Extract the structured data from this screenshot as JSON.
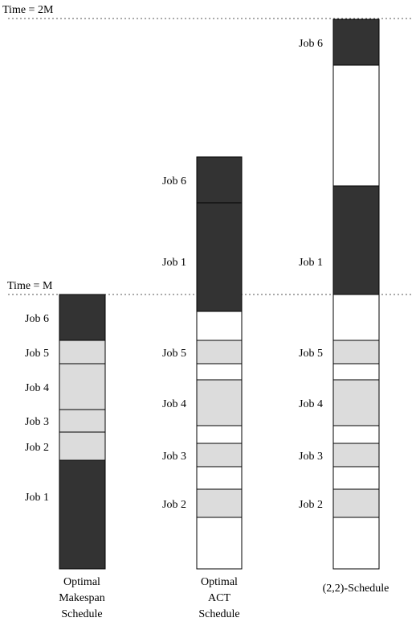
{
  "time_lines": {
    "top_label": "Time = 2M",
    "mid_label": "Time = M"
  },
  "colors": {
    "dark": "#333333",
    "light": "#dcdcdc",
    "white": "#ffffff"
  },
  "columns": [
    {
      "id": "optimal-makespan",
      "caption": [
        "Optimal",
        "Makespan",
        "Schedule"
      ],
      "blocks": [
        {
          "label": "Job 1",
          "shade": "dark"
        },
        {
          "label": "Job 2",
          "shade": "light"
        },
        {
          "label": "Job 3",
          "shade": "light"
        },
        {
          "label": "Job 4",
          "shade": "light"
        },
        {
          "label": "Job 5",
          "shade": "light"
        },
        {
          "label": "Job 6",
          "shade": "dark"
        }
      ]
    },
    {
      "id": "optimal-act",
      "caption": [
        "Optimal",
        "ACT",
        "Schedule"
      ],
      "blocks": [
        {
          "label": "",
          "shade": "white"
        },
        {
          "label": "Job 2",
          "shade": "light"
        },
        {
          "label": "",
          "shade": "white"
        },
        {
          "label": "Job 3",
          "shade": "light"
        },
        {
          "label": "",
          "shade": "white"
        },
        {
          "label": "Job 4",
          "shade": "light"
        },
        {
          "label": "",
          "shade": "white"
        },
        {
          "label": "Job 5",
          "shade": "light"
        },
        {
          "label": "",
          "shade": "white"
        },
        {
          "label": "Job 1",
          "shade": "dark"
        },
        {
          "label": "Job 6",
          "shade": "dark"
        }
      ]
    },
    {
      "id": "two-two-schedule",
      "caption": [
        "(2,2)-Schedule"
      ],
      "blocks": [
        {
          "label": "",
          "shade": "white"
        },
        {
          "label": "Job 2",
          "shade": "light"
        },
        {
          "label": "",
          "shade": "white"
        },
        {
          "label": "Job 3",
          "shade": "light"
        },
        {
          "label": "",
          "shade": "white"
        },
        {
          "label": "Job 4",
          "shade": "light"
        },
        {
          "label": "",
          "shade": "white"
        },
        {
          "label": "Job 5",
          "shade": "light"
        },
        {
          "label": "",
          "shade": "white"
        },
        {
          "label": "Job 1",
          "shade": "dark"
        },
        {
          "label": "",
          "shade": "white"
        },
        {
          "label": "Job 6",
          "shade": "dark"
        }
      ]
    }
  ]
}
